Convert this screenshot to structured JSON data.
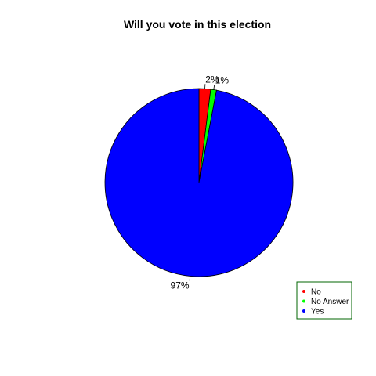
{
  "chart_data": {
    "type": "pie",
    "title": "Will you vote in this election",
    "slices": [
      {
        "name": "No",
        "value": 2,
        "label": "2%",
        "color": "#ff0000"
      },
      {
        "name": "No Answer",
        "value": 1,
        "label": "1%",
        "color": "#00ff00"
      },
      {
        "name": "Yes",
        "value": 97,
        "label": "97%",
        "color": "#0000ff"
      }
    ],
    "start_position": "top",
    "direction": "clockwise",
    "legend": {
      "position": "bottom-right",
      "border_color": "#006400",
      "entries": [
        "No",
        "No Answer",
        "Yes"
      ]
    }
  }
}
